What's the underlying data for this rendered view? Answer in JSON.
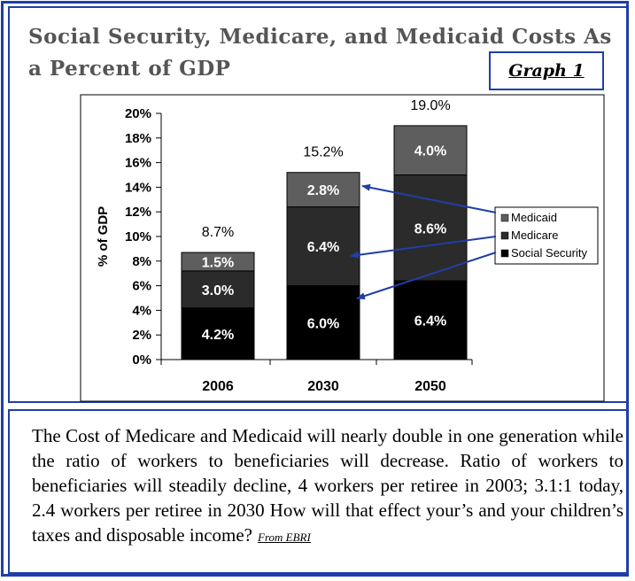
{
  "title": "Social Security, Medicare, and Medicaid Costs As a Percent of GDP",
  "graph_label": "Graph 1",
  "caption": "The Cost of Medicare and Medicaid will nearly double in one generation while the ratio of workers to beneficiaries will decrease. Ratio of workers to beneficiaries will steadily decline, 4 workers per retiree in 2003; 3.1:1  today, 2.4 workers per retiree in 2030 How will that effect your’s and your children’s taxes and disposable income?",
  "source_note": "From EBRI",
  "colors": {
    "frame": "#1f3fa8",
    "arrow": "#1f3fa8",
    "social_security": "#000000",
    "medicare": "#2b2b2b",
    "medicaid": "#5e5e5e"
  },
  "chart_data": {
    "type": "bar",
    "stacked": true,
    "categories": [
      "2006",
      "2030",
      "2050"
    ],
    "series": [
      {
        "name": "Social Security",
        "values": [
          4.2,
          6.0,
          6.4
        ],
        "labels": [
          "4.2%",
          "6.0%",
          "6.4%"
        ]
      },
      {
        "name": "Medicare",
        "values": [
          3.0,
          6.4,
          8.6
        ],
        "labels": [
          "3.0%",
          "6.4%",
          "8.6%"
        ]
      },
      {
        "name": "Medicaid",
        "values": [
          1.5,
          2.8,
          4.0
        ],
        "labels": [
          "1.5%",
          "2.8%",
          "4.0%"
        ]
      }
    ],
    "totals": [
      8.7,
      15.2,
      19.0
    ],
    "total_labels": [
      "8.7%",
      "15.2%",
      "19.0%"
    ],
    "ylabel": "% of GDP",
    "xlabel": "",
    "ylim": [
      0,
      20
    ],
    "yticks": [
      0,
      2,
      4,
      6,
      8,
      10,
      12,
      14,
      16,
      18,
      20
    ],
    "ytick_labels": [
      "0%",
      "2%",
      "4%",
      "6%",
      "8%",
      "10%",
      "12%",
      "14%",
      "16%",
      "18%",
      "20%"
    ],
    "grid": false,
    "legend": [
      "Medicaid",
      "Medicare",
      "Social Security"
    ],
    "legend_position": "right"
  }
}
